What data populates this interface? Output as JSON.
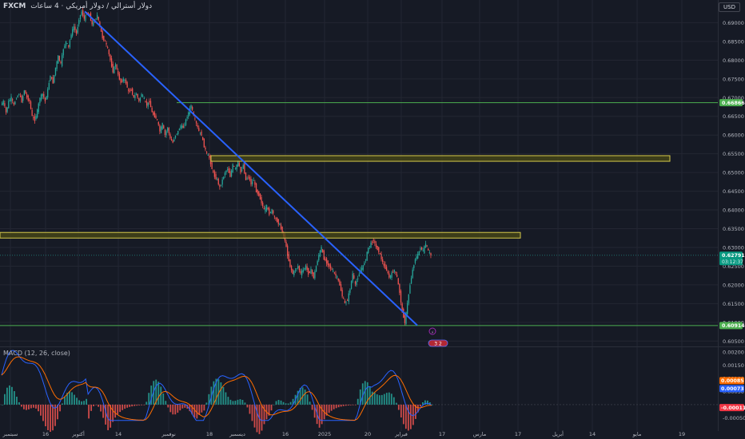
{
  "header": {
    "symbol": "FXCM",
    "title": "دولار أسترالي / دولار أمريكي · 4 ساعات",
    "currency": "USD"
  },
  "price_axis": {
    "ticks": [
      "0.69000",
      "0.68500",
      "0.68000",
      "0.67500",
      "0.67000",
      "0.66500",
      "0.66000",
      "0.65500",
      "0.65000",
      "0.64500",
      "0.64000",
      "0.63500",
      "0.63000",
      "0.62500",
      "0.62000",
      "0.61500",
      "0.61000",
      "0.60500"
    ],
    "tags": [
      {
        "label": "0.66866",
        "color": "#4caf50"
      },
      {
        "label": "0.62791",
        "sublabel": "03:12:37",
        "color": "#089981"
      },
      {
        "label": "0.60914",
        "color": "#4caf50"
      }
    ]
  },
  "macd": {
    "label": "MACD (12, 26, close)",
    "ticks": [
      "0.00200",
      "0.00150",
      "0.00100",
      "0.00050",
      "-0.00050"
    ],
    "tags": [
      {
        "label": "0.00085",
        "color": "#ff6d00"
      },
      {
        "label": "0.00073",
        "color": "#2962ff"
      },
      {
        "label": "-0.00011",
        "color": "#f23645"
      }
    ]
  },
  "time_axis": {
    "labels": [
      "سبتمبر",
      "16",
      "أكتوبر",
      "14",
      "نوفمبر",
      "18",
      "ديسمبر",
      "16",
      "2025",
      "20",
      "فبراير",
      "17",
      "مارس",
      "17",
      "أبريل",
      "14",
      "مايو",
      "19"
    ]
  },
  "badges": {
    "marker": "⚡",
    "tag": "3 2"
  },
  "colors": {
    "background": "#161a25",
    "grid": "#232632",
    "up": "#26a69a",
    "down": "#ef5350",
    "trendline": "#2962ff",
    "zone": "#4a4a16",
    "zone_border": "#d6c94a",
    "hline": "#4caf50",
    "macd_line": "#2962ff",
    "signal_line": "#ff6d00"
  },
  "chart_data": [
    {
      "type": "candlestick",
      "title": "AUD/USD",
      "ylim": [
        0.604,
        0.6935
      ],
      "x": [
        "Sep",
        "Oct",
        "Nov",
        "Dec",
        "2025",
        "Feb",
        "Mar",
        "Apr",
        "May"
      ],
      "path": [
        0.668,
        0.669,
        0.666,
        0.669,
        0.67,
        0.668,
        0.67,
        0.671,
        0.669,
        0.672,
        0.67,
        0.669,
        0.665,
        0.664,
        0.6665,
        0.67,
        0.671,
        0.669,
        0.672,
        0.676,
        0.674,
        0.678,
        0.681,
        0.679,
        0.683,
        0.685,
        0.6835,
        0.687,
        0.689,
        0.687,
        0.691,
        0.693,
        0.691,
        0.6925,
        0.692,
        0.6895,
        0.6905,
        0.692,
        0.689,
        0.686,
        0.685,
        0.683,
        0.68,
        0.677,
        0.679,
        0.676,
        0.674,
        0.675,
        0.674,
        0.6715,
        0.672,
        0.67,
        0.671,
        0.669,
        0.671,
        0.6695,
        0.668,
        0.669,
        0.666,
        0.665,
        0.664,
        0.661,
        0.663,
        0.66,
        0.662,
        0.659,
        0.658,
        0.66,
        0.661,
        0.6625,
        0.662,
        0.664,
        0.666,
        0.668,
        0.665,
        0.663,
        0.661,
        0.66,
        0.657,
        0.655,
        0.654,
        0.651,
        0.649,
        0.648,
        0.646,
        0.648,
        0.65,
        0.651,
        0.649,
        0.652,
        0.651,
        0.653,
        0.65,
        0.652,
        0.648,
        0.649,
        0.647,
        0.648,
        0.645,
        0.644,
        0.642,
        0.64,
        0.641,
        0.639,
        0.64,
        0.638,
        0.637,
        0.636,
        0.634,
        0.632,
        0.628,
        0.625,
        0.623,
        0.624,
        0.625,
        0.623,
        0.624,
        0.625,
        0.623,
        0.624,
        0.622,
        0.625,
        0.628,
        0.63,
        0.627,
        0.626,
        0.625,
        0.624,
        0.623,
        0.622,
        0.62,
        0.617,
        0.615,
        0.616,
        0.619,
        0.623,
        0.62,
        0.622,
        0.624,
        0.625,
        0.627,
        0.63,
        0.631,
        0.632,
        0.63,
        0.629,
        0.627,
        0.625,
        0.624,
        0.622,
        0.623,
        0.624,
        0.622,
        0.618,
        0.613,
        0.61,
        0.615,
        0.62,
        0.624,
        0.627,
        0.628,
        0.63,
        0.629,
        0.631,
        0.629,
        0.6279
      ],
      "trendline": [
        [
          0.693,
          "Oct"
        ],
        [
          0.6092,
          "Feb"
        ]
      ],
      "zones": [
        [
          0.653,
          0.6545
        ],
        [
          0.6325,
          0.634
        ]
      ],
      "hlines": [
        0.66866,
        0.60914
      ],
      "last_price": 0.62791
    },
    {
      "type": "macd",
      "ylim": [
        -0.00085,
        0.00215
      ],
      "macd_line": "oscillating between about -0.0004 and 0.0020",
      "signal_line": "smoothed MACD",
      "last_values": {
        "macd": 0.00073,
        "signal": 0.00085,
        "histogram": -0.00011
      }
    }
  ]
}
